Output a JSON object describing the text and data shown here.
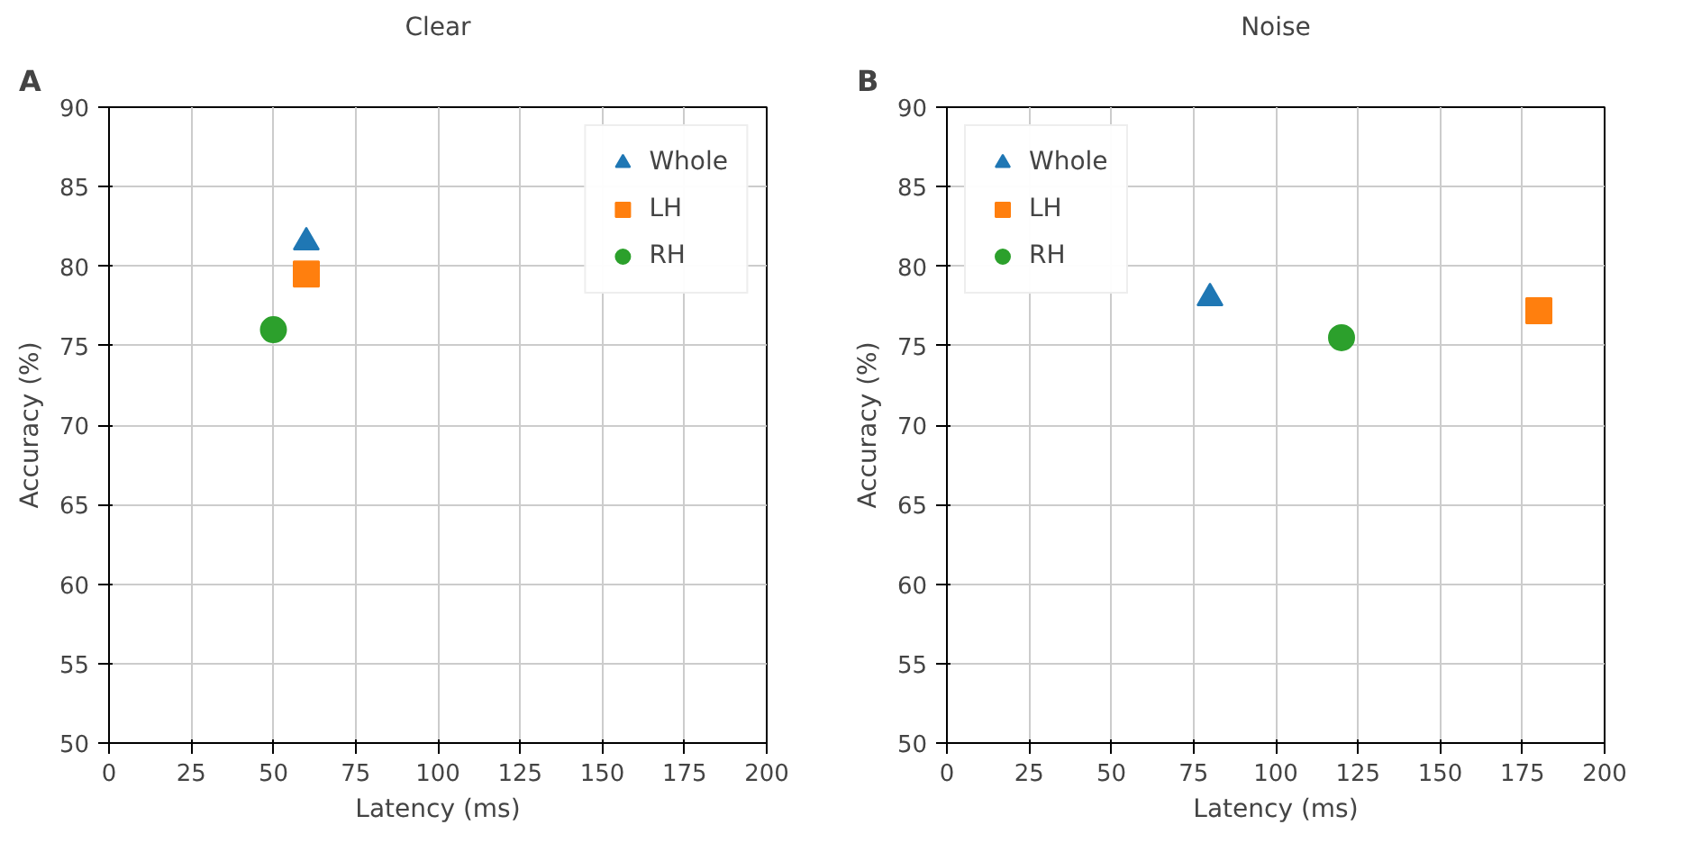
{
  "chart_data": [
    {
      "type": "scatter",
      "title": "Clear",
      "xlabel": "Latency (ms)",
      "ylabel": "Accuracy (%)",
      "annotations": [
        "A"
      ],
      "xlim": [
        0,
        200
      ],
      "ylim": [
        50,
        90
      ],
      "xticks": [
        0,
        25,
        50,
        75,
        100,
        125,
        150,
        175,
        200
      ],
      "yticks": [
        50,
        55,
        60,
        65,
        70,
        75,
        80,
        85,
        90
      ],
      "grid": true,
      "legend": "top right",
      "series": [
        {
          "name": "Whole",
          "color": "#1f77b4",
          "marker": "triangle",
          "x": [
            60
          ],
          "values": [
            81.5
          ]
        },
        {
          "name": "LH",
          "color": "#ff7f0e",
          "marker": "square",
          "x": [
            60
          ],
          "values": [
            79.5
          ]
        },
        {
          "name": "RH",
          "color": "#2ca02c",
          "marker": "circle",
          "x": [
            50
          ],
          "values": [
            76
          ]
        }
      ]
    },
    {
      "type": "scatter",
      "title": "Noise",
      "xlabel": "Latency (ms)",
      "ylabel": "Accuracy (%)",
      "annotations": [
        "B"
      ],
      "xlim": [
        0,
        200
      ],
      "ylim": [
        50,
        90
      ],
      "xticks": [
        0,
        25,
        50,
        75,
        100,
        125,
        150,
        175,
        200
      ],
      "yticks": [
        50,
        55,
        60,
        65,
        70,
        75,
        80,
        85,
        90
      ],
      "grid": true,
      "legend": "top left",
      "series": [
        {
          "name": "Whole",
          "color": "#1f77b4",
          "marker": "triangle",
          "x": [
            80
          ],
          "values": [
            78
          ]
        },
        {
          "name": "LH",
          "color": "#ff7f0e",
          "marker": "square",
          "x": [
            180
          ],
          "values": [
            77.2
          ]
        },
        {
          "name": "RH",
          "color": "#2ca02c",
          "marker": "circle",
          "x": [
            120
          ],
          "values": [
            75.5
          ]
        }
      ]
    }
  ]
}
